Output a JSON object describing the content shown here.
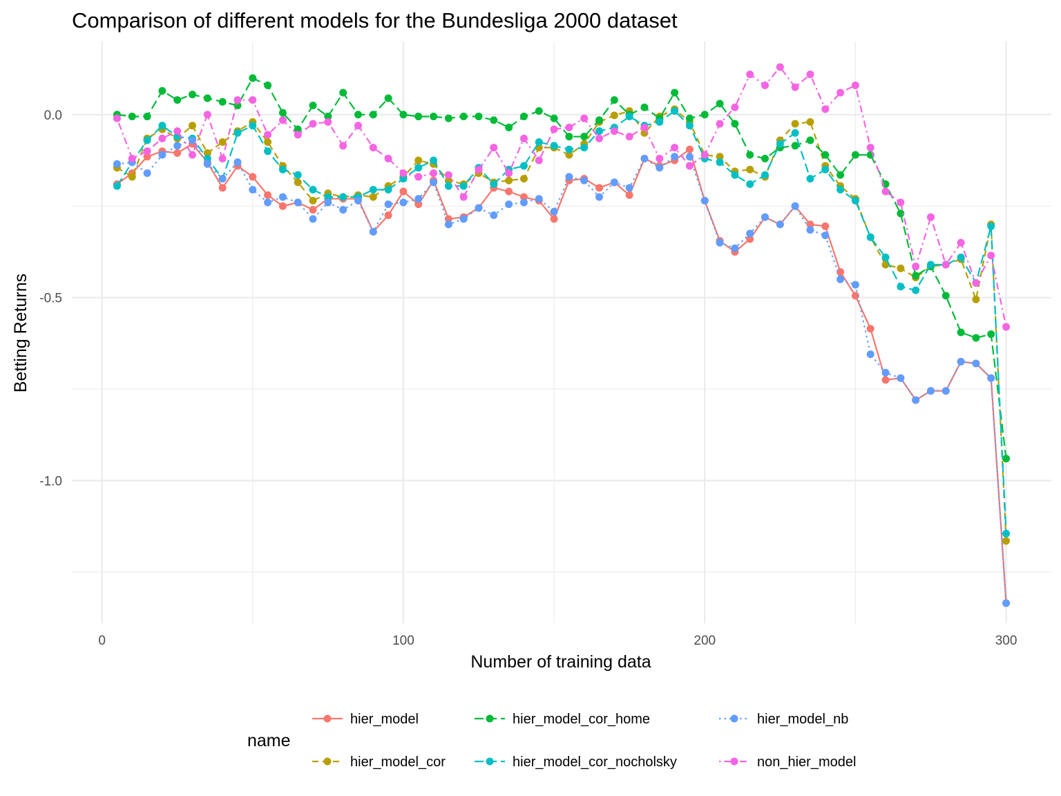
{
  "chart_data": {
    "type": "line",
    "title": "Comparison of different models for the Bundesliga 2000 dataset",
    "xlabel": "Number of training data",
    "ylabel": "Betting Returns",
    "xlim": [
      -10,
      315
    ],
    "ylim": [
      -1.39,
      0.2
    ],
    "x_ticks": [
      0,
      100,
      200,
      300
    ],
    "x_tick_labels": [
      "0",
      "100",
      "200",
      "300"
    ],
    "y_ticks": [
      0.0,
      -0.5,
      -1.0
    ],
    "y_tick_labels": [
      "0.0",
      "-0.5",
      "-1.0"
    ],
    "grid": true,
    "legend_title": "name",
    "legend_position": "bottom",
    "x": [
      5,
      10,
      15,
      20,
      25,
      30,
      35,
      40,
      45,
      50,
      55,
      60,
      65,
      70,
      75,
      80,
      85,
      90,
      95,
      100,
      105,
      110,
      115,
      120,
      125,
      130,
      135,
      140,
      145,
      150,
      155,
      160,
      165,
      170,
      175,
      180,
      185,
      190,
      195,
      200,
      205,
      210,
      215,
      220,
      225,
      230,
      235,
      240,
      245,
      250,
      255,
      260,
      265,
      270,
      275,
      280,
      285,
      290,
      295,
      300
    ],
    "series": [
      {
        "name": "hier_model",
        "color": "#F8766D",
        "dash": "solid",
        "values": [
          -0.19,
          -0.16,
          -0.115,
          -0.1,
          -0.105,
          -0.08,
          -0.13,
          -0.2,
          -0.14,
          -0.17,
          -0.22,
          -0.25,
          -0.24,
          -0.26,
          -0.23,
          -0.23,
          -0.23,
          -0.32,
          -0.275,
          -0.21,
          -0.245,
          -0.18,
          -0.285,
          -0.28,
          -0.255,
          -0.2,
          -0.21,
          -0.225,
          -0.235,
          -0.285,
          -0.18,
          -0.175,
          -0.2,
          -0.185,
          -0.22,
          -0.12,
          -0.14,
          -0.125,
          -0.095,
          -0.235,
          -0.345,
          -0.375,
          -0.34,
          -0.28,
          -0.3,
          -0.25,
          -0.3,
          -0.305,
          -0.43,
          -0.495,
          -0.585,
          -0.725,
          -0.72,
          -0.78,
          -0.755,
          -0.755,
          -0.675,
          -0.68,
          -0.72,
          -1.335
        ]
      },
      {
        "name": "hier_model_cor",
        "color": "#B79F00",
        "dash": "dashed",
        "values": [
          -0.145,
          -0.17,
          -0.065,
          -0.04,
          -0.065,
          -0.03,
          -0.105,
          -0.075,
          -0.045,
          -0.02,
          -0.075,
          -0.14,
          -0.185,
          -0.235,
          -0.215,
          -0.225,
          -0.22,
          -0.225,
          -0.195,
          -0.17,
          -0.125,
          -0.135,
          -0.18,
          -0.19,
          -0.16,
          -0.185,
          -0.18,
          -0.175,
          -0.09,
          -0.09,
          -0.11,
          -0.08,
          -0.02,
          -0.002,
          0.01,
          -0.05,
          -0.005,
          0.015,
          -0.02,
          -0.11,
          -0.115,
          -0.155,
          -0.15,
          -0.17,
          -0.07,
          -0.025,
          -0.02,
          -0.14,
          -0.195,
          -0.23,
          -0.335,
          -0.41,
          -0.42,
          -0.445,
          -0.415,
          -0.41,
          -0.395,
          -0.505,
          -0.3,
          -1.165
        ]
      },
      {
        "name": "hier_model_cor_home",
        "color": "#00BA38",
        "dash": "longdash",
        "values": [
          0.0,
          -0.005,
          -0.005,
          0.065,
          0.04,
          0.055,
          0.045,
          0.035,
          0.025,
          0.1,
          0.08,
          0.005,
          -0.04,
          0.025,
          -0.005,
          0.06,
          0.0,
          0.0,
          0.045,
          0.0,
          -0.005,
          -0.005,
          -0.01,
          -0.005,
          -0.005,
          -0.015,
          -0.035,
          -0.005,
          0.01,
          -0.01,
          -0.06,
          -0.06,
          -0.015,
          0.04,
          0.0,
          0.02,
          -0.01,
          0.06,
          -0.01,
          0.0,
          0.03,
          -0.025,
          -0.11,
          -0.12,
          -0.09,
          -0.085,
          -0.07,
          -0.11,
          -0.165,
          -0.11,
          -0.11,
          -0.19,
          -0.27,
          -0.44,
          -0.415,
          -0.495,
          -0.595,
          -0.61,
          -0.6,
          -0.94
        ]
      },
      {
        "name": "hier_model_cor_nocholsky",
        "color": "#00BFC4",
        "dash": "longdash",
        "values": [
          -0.195,
          -0.13,
          -0.07,
          -0.03,
          -0.06,
          -0.065,
          -0.12,
          -0.175,
          -0.05,
          -0.03,
          -0.1,
          -0.15,
          -0.165,
          -0.205,
          -0.225,
          -0.225,
          -0.225,
          -0.205,
          -0.205,
          -0.175,
          -0.145,
          -0.125,
          -0.195,
          -0.195,
          -0.145,
          -0.19,
          -0.15,
          -0.14,
          -0.075,
          -0.085,
          -0.095,
          -0.09,
          -0.045,
          -0.035,
          -0.005,
          -0.03,
          -0.02,
          0.01,
          -0.03,
          -0.12,
          -0.13,
          -0.165,
          -0.19,
          -0.165,
          -0.08,
          -0.05,
          -0.175,
          -0.15,
          -0.205,
          -0.235,
          -0.335,
          -0.39,
          -0.47,
          -0.48,
          -0.41,
          -0.41,
          -0.39,
          -0.46,
          -0.305,
          -1.145
        ]
      },
      {
        "name": "hier_model_nb",
        "color": "#619CFF",
        "dash": "dotted",
        "values": [
          -0.135,
          -0.13,
          -0.16,
          -0.11,
          -0.085,
          -0.07,
          -0.135,
          -0.175,
          -0.13,
          -0.205,
          -0.24,
          -0.225,
          -0.24,
          -0.285,
          -0.24,
          -0.26,
          -0.235,
          -0.32,
          -0.245,
          -0.24,
          -0.23,
          -0.185,
          -0.3,
          -0.285,
          -0.255,
          -0.275,
          -0.245,
          -0.24,
          -0.23,
          -0.265,
          -0.17,
          -0.18,
          -0.225,
          -0.185,
          -0.2,
          -0.12,
          -0.145,
          -0.115,
          -0.115,
          -0.235,
          -0.35,
          -0.365,
          -0.325,
          -0.28,
          -0.3,
          -0.25,
          -0.315,
          -0.33,
          -0.45,
          -0.465,
          -0.655,
          -0.705,
          -0.72,
          -0.78,
          -0.755,
          -0.755,
          -0.675,
          -0.68,
          -0.72,
          -1.335
        ]
      },
      {
        "name": "non_hier_model",
        "color": "#F564E3",
        "dash": "dotdash",
        "values": [
          -0.01,
          -0.12,
          -0.1,
          -0.065,
          -0.045,
          -0.11,
          0.0,
          -0.12,
          0.04,
          0.04,
          -0.055,
          -0.015,
          -0.055,
          -0.025,
          -0.02,
          -0.085,
          -0.03,
          -0.09,
          -0.12,
          -0.16,
          -0.17,
          -0.16,
          -0.165,
          -0.225,
          -0.15,
          -0.09,
          -0.16,
          -0.065,
          -0.125,
          -0.04,
          -0.035,
          -0.01,
          -0.065,
          -0.045,
          -0.06,
          -0.035,
          -0.12,
          -0.09,
          -0.14,
          -0.11,
          -0.025,
          0.02,
          0.11,
          0.08,
          0.13,
          0.075,
          0.11,
          0.015,
          0.06,
          0.08,
          -0.09,
          -0.21,
          -0.24,
          -0.415,
          -0.28,
          -0.41,
          -0.35,
          -0.46,
          -0.385,
          -0.58
        ]
      }
    ]
  }
}
